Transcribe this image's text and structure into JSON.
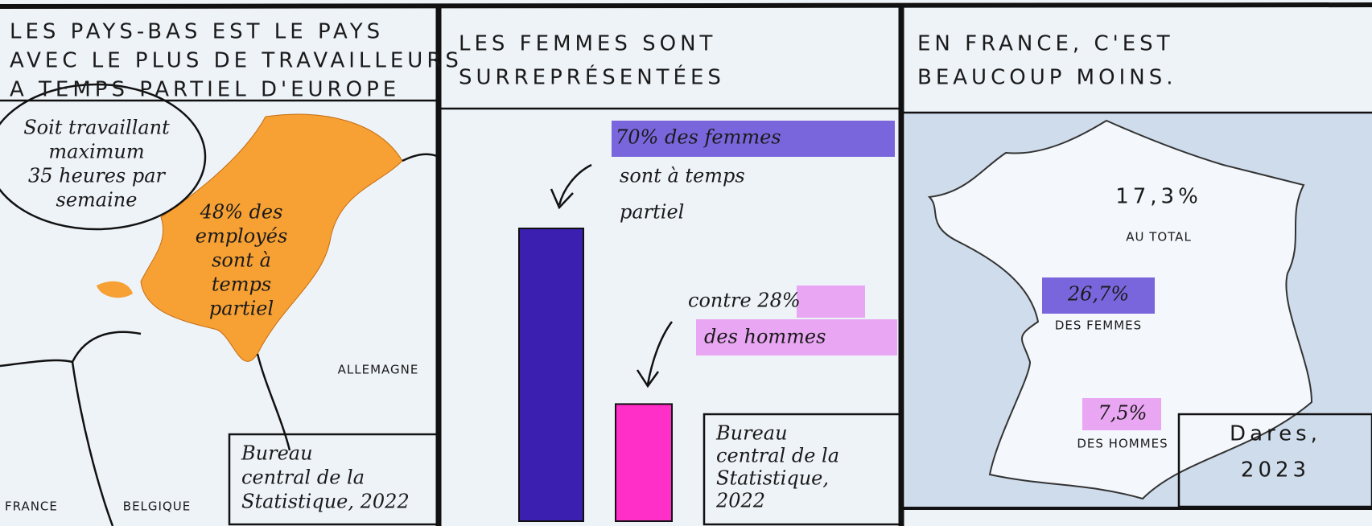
{
  "panels": [
    {
      "title": [
        "LES PAYS-BAS EST LE PAYS",
        "AVEC LE PLUS DE TRAVAILLEURS",
        "A TEMPS PARTIEL D'EUROPE"
      ],
      "bubble": [
        "Soit travaillant",
        "maximum",
        "35 heures par",
        "semaine"
      ],
      "map_text": [
        "48% des",
        "employés",
        "sont à",
        "temps",
        "partiel"
      ],
      "map_labels": [
        "ALLEMAGNE",
        "FRANCE",
        "BELGIQUE"
      ],
      "source": [
        "Bureau",
        "central de la",
        "Statistique, 2022"
      ]
    },
    {
      "title": [
        "LES FEMMES SONT",
        "SURREPRÉSENTÉES"
      ],
      "bars": [
        {
          "value": 70,
          "label": "70% des femmes",
          "note": [
            "sont à temps",
            "partiel"
          ],
          "color": "#3a1fb0"
        },
        {
          "value": 28,
          "label": "contre 28%",
          "note": [
            "des hommes"
          ],
          "color": "#ff2fc8"
        }
      ],
      "source": [
        "Bureau",
        "central de la",
        "Statistique,",
        "2022"
      ]
    },
    {
      "title": [
        "EN FRANCE, C'EST",
        "BEAUCOUP MOINS."
      ],
      "stats": [
        {
          "value": "17,3%",
          "label": "AU TOTAL"
        },
        {
          "value": "26,7%",
          "label": "DES FEMMES"
        },
        {
          "value": "7,5%",
          "label": "DES HOMMES"
        }
      ],
      "source": [
        "Dares,",
        "2023"
      ]
    }
  ]
}
